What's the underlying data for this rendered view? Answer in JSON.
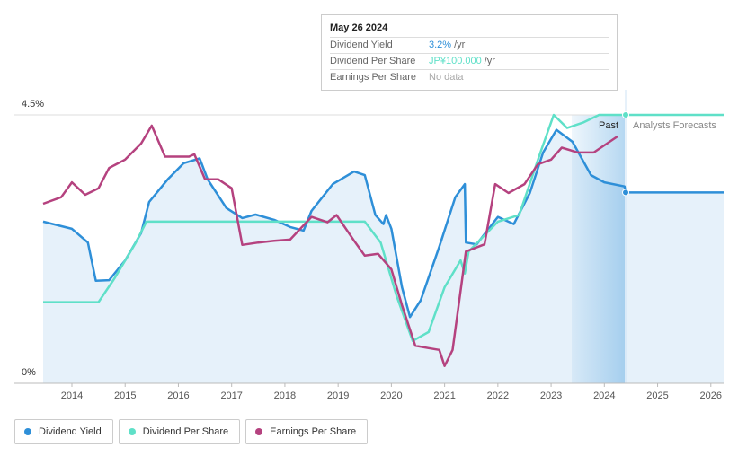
{
  "chart_data": {
    "type": "line",
    "tooltip": {
      "date": "May 26 2024",
      "rows": [
        {
          "label": "Dividend Yield",
          "value": "3.2%",
          "unit": "/yr"
        },
        {
          "label": "Dividend Per Share",
          "value": "JP¥100.000",
          "unit": "/yr"
        },
        {
          "label": "Earnings Per Share",
          "value": "No data"
        }
      ]
    },
    "annotations": [
      "Past",
      "Analysts Forecasts"
    ],
    "xlim": [
      2013.46,
      2026.24
    ],
    "xticks": [
      2014,
      2015,
      2016,
      2017,
      2018,
      2019,
      2020,
      2021,
      2022,
      2023,
      2024,
      2025,
      2026
    ],
    "ylim": [
      0,
      4.5
    ],
    "yticks": [
      {
        "value": 0,
        "label": "0%"
      },
      {
        "value": 4.5,
        "label": "4.5%"
      }
    ],
    "series": [
      {
        "name": "Dividend Yield",
        "color": "#2e8fd8",
        "x": [
          2013.46,
          2014.0,
          2014.3,
          2014.45,
          2014.7,
          2015.0,
          2015.3,
          2015.45,
          2015.8,
          2016.1,
          2016.4,
          2016.55,
          2016.9,
          2017.2,
          2017.45,
          2017.8,
          2018.1,
          2018.35,
          2018.5,
          2018.9,
          2019.3,
          2019.5,
          2019.7,
          2019.85,
          2019.9,
          2020.0,
          2020.2,
          2020.35,
          2020.55,
          2020.9,
          2021.2,
          2021.38,
          2021.4,
          2021.6,
          2022.0,
          2022.3,
          2022.6,
          2022.85,
          2023.1,
          2023.4,
          2023.75,
          2024.0,
          2024.38,
          2024.4,
          2026.24
        ],
        "values": [
          2.71,
          2.59,
          2.36,
          1.72,
          1.73,
          2.06,
          2.52,
          3.04,
          3.42,
          3.69,
          3.77,
          3.42,
          2.94,
          2.77,
          2.83,
          2.74,
          2.62,
          2.56,
          2.89,
          3.34,
          3.55,
          3.49,
          2.82,
          2.67,
          2.82,
          2.59,
          1.61,
          1.11,
          1.39,
          2.29,
          3.12,
          3.34,
          2.36,
          2.33,
          2.79,
          2.67,
          3.19,
          3.87,
          4.25,
          4.05,
          3.49,
          3.37,
          3.3,
          3.2,
          3.2
        ]
      },
      {
        "name": "Dividend Per Share",
        "color": "#5fe0c8",
        "x": [
          2013.46,
          2014.5,
          2014.8,
          2015.2,
          2015.4,
          2019.5,
          2019.8,
          2020.1,
          2020.4,
          2020.7,
          2021.0,
          2021.3,
          2021.38,
          2021.45,
          2022.0,
          2022.4,
          2022.8,
          2023.05,
          2023.3,
          2023.6,
          2023.9,
          2024.4,
          2026.24
        ],
        "values": [
          1.36,
          1.36,
          1.76,
          2.36,
          2.71,
          2.71,
          2.36,
          1.46,
          0.71,
          0.86,
          1.61,
          2.06,
          1.84,
          2.21,
          2.71,
          2.82,
          3.87,
          4.5,
          4.28,
          4.37,
          4.5,
          4.5,
          4.5
        ]
      },
      {
        "name": "Earnings Per Share",
        "color": "#b5427f",
        "x": [
          2013.46,
          2013.8,
          2014.0,
          2014.25,
          2014.5,
          2014.7,
          2015.0,
          2015.3,
          2015.5,
          2015.75,
          2016.2,
          2016.3,
          2016.5,
          2016.75,
          2017.0,
          2017.2,
          2017.5,
          2017.8,
          2018.1,
          2018.5,
          2018.8,
          2018.97,
          2019.3,
          2019.5,
          2019.75,
          2020.0,
          2020.2,
          2020.45,
          2020.7,
          2020.9,
          2021.0,
          2021.15,
          2021.4,
          2021.75,
          2021.95,
          2022.2,
          2022.5,
          2022.75,
          2023.0,
          2023.2,
          2023.5,
          2023.8,
          2024.25
        ],
        "values": [
          3.01,
          3.12,
          3.37,
          3.16,
          3.27,
          3.61,
          3.75,
          4.02,
          4.32,
          3.8,
          3.8,
          3.84,
          3.42,
          3.42,
          3.27,
          2.32,
          2.36,
          2.39,
          2.41,
          2.79,
          2.7,
          2.82,
          2.39,
          2.14,
          2.17,
          1.91,
          1.31,
          0.63,
          0.59,
          0.56,
          0.29,
          0.56,
          2.21,
          2.33,
          3.34,
          3.19,
          3.34,
          3.67,
          3.75,
          3.95,
          3.87,
          3.87,
          4.14
        ]
      }
    ]
  }
}
